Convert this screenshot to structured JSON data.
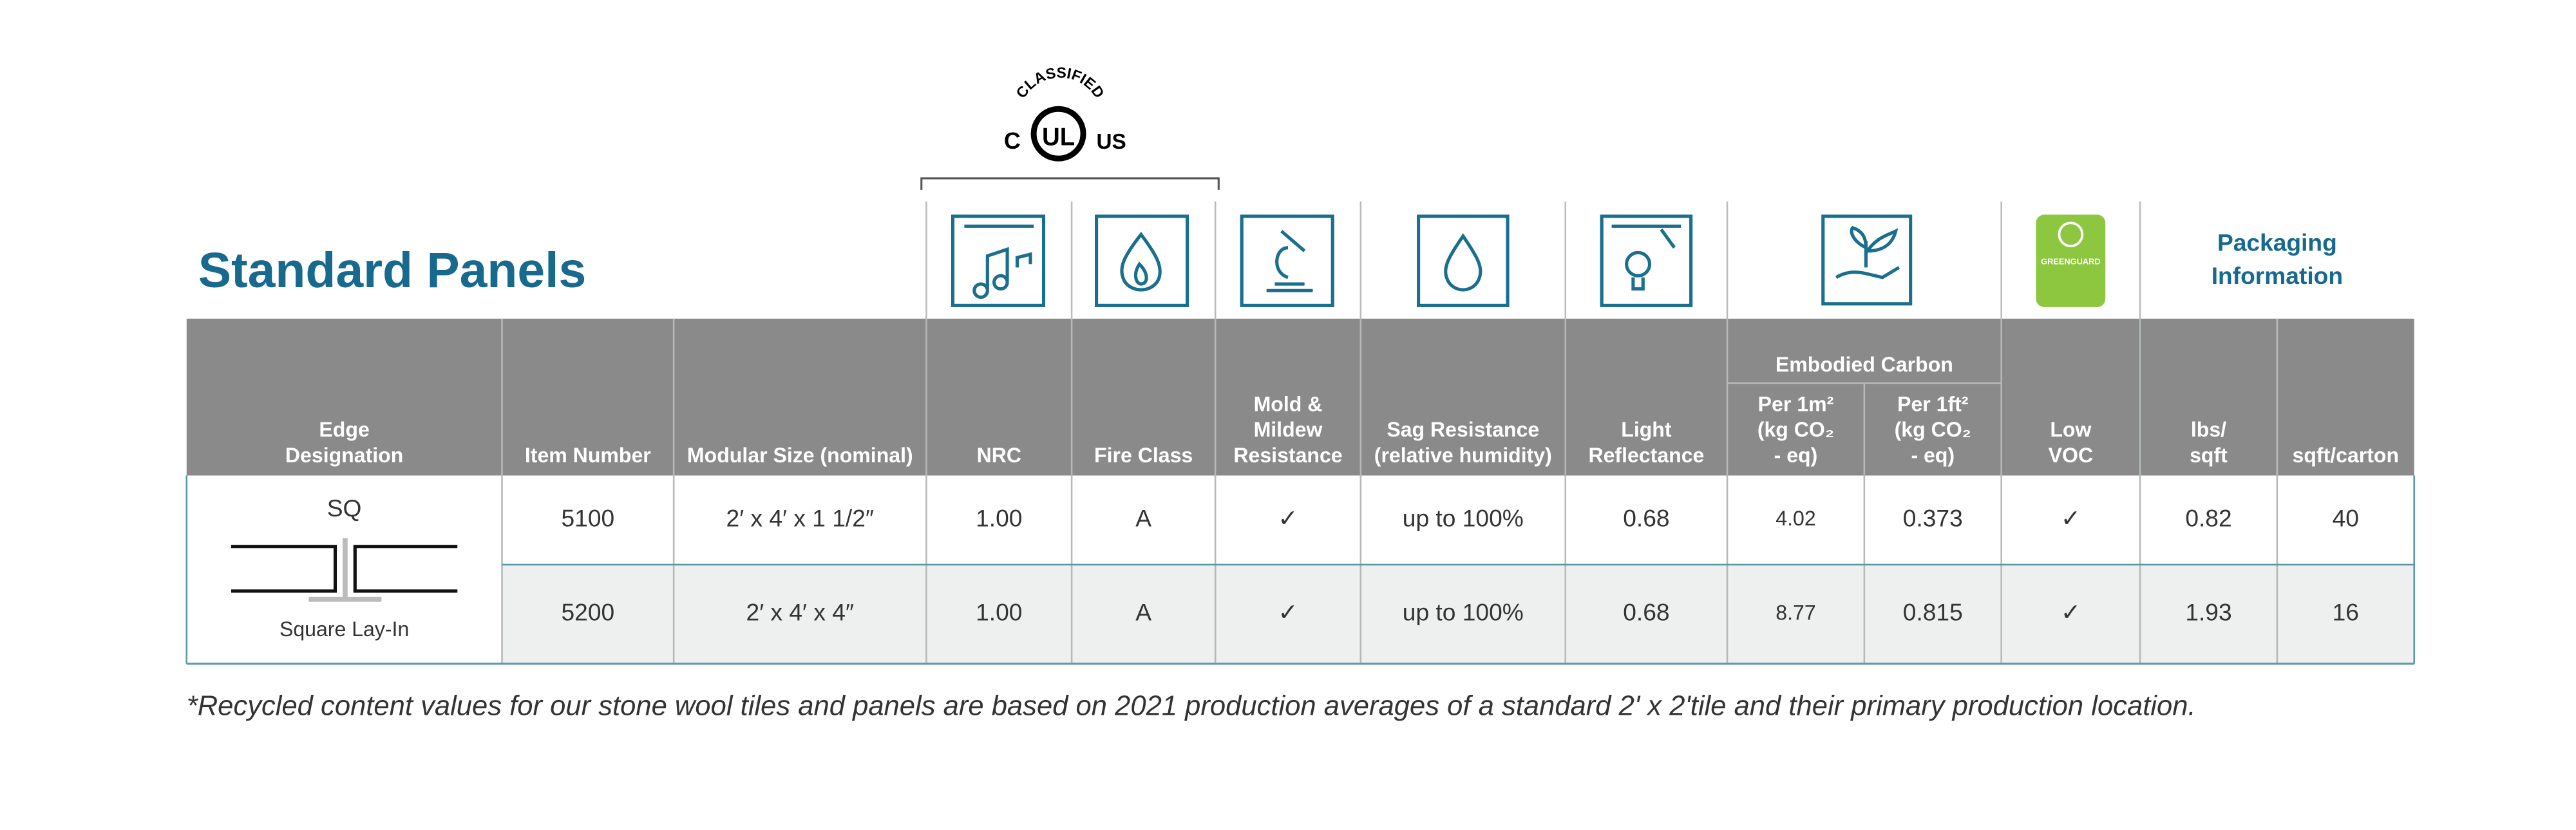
{
  "title": "Standard Panels",
  "certification": {
    "ul": {
      "top": "CLASSIFIED",
      "left": "C",
      "center": "UL",
      "right": "US"
    },
    "greenguard": "GREENGUARD"
  },
  "packaging_header": [
    "Packaging",
    "Information"
  ],
  "table": {
    "group_header": "Embodied Carbon",
    "columns": [
      [
        "Edge",
        "Designation"
      ],
      [
        "Item Number"
      ],
      [
        "Modular Size (nominal)"
      ],
      [
        "NRC"
      ],
      [
        "Fire Class"
      ],
      [
        "Mold &",
        "Mildew",
        "Resistance"
      ],
      [
        "Sag Resistance",
        "(relative humidity)"
      ],
      [
        "Light",
        "Reflectance"
      ],
      [
        "Per 1m²",
        "(kg CO₂",
        "- eq)"
      ],
      [
        "Per 1ft²",
        "(kg CO₂",
        "- eq)"
      ],
      [
        "Low",
        "VOC"
      ],
      [
        "lbs/",
        "sqft"
      ],
      [
        "sqft/carton"
      ]
    ],
    "edge": {
      "code": "SQ",
      "name": "Square Lay-In"
    },
    "rows": [
      [
        "5100",
        "2′ x 4′ x 1 1/2″",
        "1.00",
        "A",
        "✓",
        "up to 100%",
        "0.68",
        "4.02",
        "0.373",
        "✓",
        "0.82",
        "40"
      ],
      [
        "5200",
        "2′ x 4′ x 4″",
        "1.00",
        "A",
        "✓",
        "up to 100%",
        "0.68",
        "8.77",
        "0.815",
        "✓",
        "1.93",
        "16"
      ]
    ]
  },
  "footnote": "*Recycled content values for our stone wool tiles and panels are based on 2021 production averages of a standard 2' x 2'tile and their primary production location."
}
